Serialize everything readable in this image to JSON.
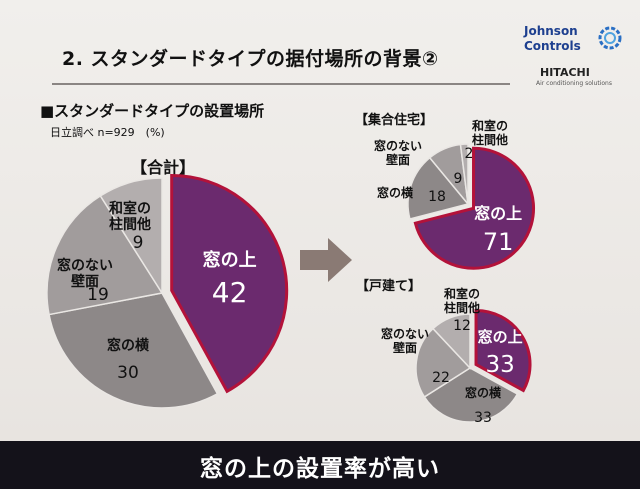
{
  "slide": {
    "title": "2. スタンダードタイプの据付場所の背景②",
    "section_heading": "■スタンダードタイプの設置場所",
    "survey_note": "日立調べ n=929　(%)",
    "conclusion": "窓の上の設置率が高い"
  },
  "logos": {
    "jc_line1": "Johnson",
    "jc_line2": "Controls",
    "hitachi": "HITACHI",
    "hitachi_sub": "Air conditioning solutions"
  },
  "colors": {
    "highlight": "#6b2a6e",
    "highlight_border": "#b3123a",
    "grey_dark": "#8d8888",
    "grey_mid": "#a19c9c",
    "grey_light": "#b3aeae",
    "arrow": "#8a7a74"
  },
  "chart_data": [
    {
      "type": "pie",
      "title": "【合計】",
      "slices": [
        {
          "label": "窓の上",
          "value": 42,
          "highlight": true
        },
        {
          "label": "窓の横",
          "value": 30
        },
        {
          "label": "窓のない\n壁面",
          "value": 19
        },
        {
          "label": "和室の\n柱間他",
          "value": 9
        }
      ]
    },
    {
      "type": "pie",
      "title": "【集合住宅】",
      "slices": [
        {
          "label": "窓の上",
          "value": 71,
          "highlight": true
        },
        {
          "label": "窓の横",
          "value": 18
        },
        {
          "label": "窓のない\n壁面",
          "value": 9
        },
        {
          "label": "和室の\n柱間他",
          "value": 2
        }
      ]
    },
    {
      "type": "pie",
      "title": "【戸建て】",
      "slices": [
        {
          "label": "窓の上",
          "value": 33,
          "highlight": true
        },
        {
          "label": "窓の横",
          "value": 33
        },
        {
          "label": "窓のない\n壁面",
          "value": 22
        },
        {
          "label": "和室の\n柱間他",
          "value": 12
        }
      ]
    }
  ]
}
